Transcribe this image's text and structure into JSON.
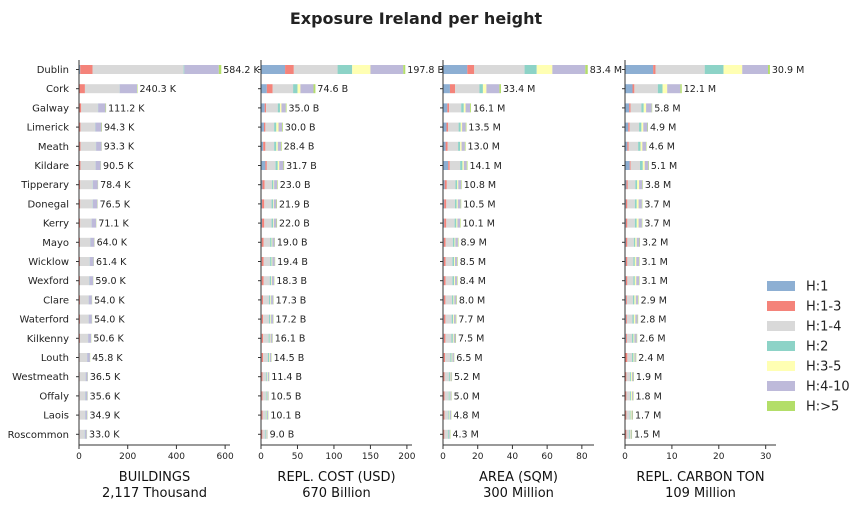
{
  "title": "Exposure Ireland per height",
  "legend_title": "",
  "chart_data": {
    "type": "bar",
    "orientation": "horizontal",
    "stacked": true,
    "title": "Exposure Ireland per height",
    "legend_placement": "right",
    "categories": [
      "Dublin",
      "Cork",
      "Galway",
      "Limerick",
      "Meath",
      "Kildare",
      "Tipperary",
      "Donegal",
      "Kerry",
      "Mayo",
      "Wicklow",
      "Wexford",
      "Clare",
      "Waterford",
      "Kilkenny",
      "Louth",
      "Westmeath",
      "Offaly",
      "Laois",
      "Roscommon"
    ],
    "series_names": [
      "H:1",
      "H:1-3",
      "H:1-4",
      "H:2",
      "H:3-5",
      "H:4-10",
      "H:>5"
    ],
    "series_colors": [
      "#8dafd3",
      "#f4837a",
      "#d9d9d9",
      "#8dd3c7",
      "#ffffb3",
      "#bebada",
      "#b3de69"
    ],
    "panels": [
      {
        "xlabel": "BUILDINGS",
        "total_label": "2,117 Thousand",
        "xlim": [
          0,
          620
        ],
        "xticks": [
          0,
          200,
          400,
          600
        ],
        "xtick_labels": [
          "0",
          "200",
          "400",
          "600"
        ],
        "totals": [
          584.2,
          240.3,
          111.2,
          94.3,
          93.3,
          90.5,
          78.4,
          76.5,
          71.1,
          64.0,
          61.4,
          59.0,
          54.0,
          54.0,
          50.6,
          45.8,
          36.5,
          35.6,
          34.9,
          33.0
        ],
        "total_labels": [
          "584.2 K",
          "240.3 K",
          "111.2 K",
          "94.3 K",
          "93.3 K",
          "90.5 K",
          "78.4 K",
          "76.5 K",
          "71.1 K",
          "64.0 K",
          "61.4 K",
          "59.0 K",
          "54.0 K",
          "54.0 K",
          "50.6 K",
          "45.8 K",
          "36.5 K",
          "35.6 K",
          "34.9 K",
          "33.0 K"
        ],
        "segments": [
          [
            5,
            50,
            370,
            3,
            0,
            140,
            10
          ],
          [
            2,
            22,
            140,
            1,
            0,
            70,
            2
          ],
          [
            1,
            8,
            67,
            1,
            0,
            30,
            2
          ],
          [
            1,
            5,
            61,
            1,
            0,
            25,
            2
          ],
          [
            1,
            5,
            63,
            1,
            0,
            22,
            1
          ],
          [
            1,
            5,
            61,
            1,
            0,
            21,
            1
          ],
          [
            1,
            4,
            51,
            1,
            0,
            20,
            1
          ],
          [
            1,
            4,
            51,
            1,
            0,
            18,
            1
          ],
          [
            1,
            4,
            46,
            1,
            0,
            18,
            1
          ],
          [
            1,
            3,
            42,
            1,
            0,
            16,
            1
          ],
          [
            1,
            3,
            40,
            1,
            0,
            16,
            1
          ],
          [
            1,
            3,
            38,
            1,
            0,
            15,
            1
          ],
          [
            1,
            3,
            35,
            1,
            0,
            13,
            1
          ],
          [
            1,
            3,
            35,
            1,
            0,
            13,
            1
          ],
          [
            1,
            3,
            33,
            1,
            0,
            12,
            1
          ],
          [
            1,
            2,
            30,
            1,
            0,
            11,
            1
          ],
          [
            1,
            2,
            24,
            1,
            0,
            8,
            1
          ],
          [
            1,
            2,
            23,
            1,
            0,
            8,
            1
          ],
          [
            1,
            2,
            23,
            1,
            0,
            8,
            1
          ],
          [
            1,
            2,
            21,
            1,
            0,
            8,
            1
          ]
        ]
      },
      {
        "xlabel": "REPL. COST (USD)",
        "total_label": "670 Billion",
        "xlim": [
          0,
          207
        ],
        "xticks": [
          0,
          50,
          100,
          150,
          200
        ],
        "xtick_labels": [
          "0",
          "50",
          "100",
          "150",
          "200"
        ],
        "totals": [
          197.8,
          74.6,
          35.0,
          30.0,
          28.4,
          31.7,
          23.0,
          21.9,
          22.0,
          19.0,
          19.4,
          18.3,
          17.3,
          17.2,
          16.1,
          14.5,
          11.4,
          10.5,
          10.1,
          9.0
        ],
        "total_labels": [
          "197.8 B",
          "74.6 B",
          "35.0 B",
          "30.0 B",
          "28.4 B",
          "31.7 B",
          "23.0 B",
          "21.9 B",
          "22.0 B",
          "19.0 B",
          "19.4 B",
          "18.3 B",
          "17.3 B",
          "17.2 B",
          "16.1 B",
          "14.5 B",
          "11.4 B",
          "10.5 B",
          "10.1 B",
          "9.0 B"
        ],
        "segments": [
          [
            33,
            12,
            60,
            20,
            25,
            45,
            2.8
          ],
          [
            8,
            8,
            28,
            6,
            4,
            18,
            2.6
          ],
          [
            5,
            2,
            16,
            3,
            2,
            6,
            1
          ],
          [
            4,
            2,
            12,
            3,
            3,
            5,
            1
          ],
          [
            3,
            3,
            12,
            3,
            2,
            4.5,
            0.9
          ],
          [
            6,
            2,
            12,
            3,
            2,
            5.8,
            0.9
          ],
          [
            2,
            3,
            10,
            2,
            1,
            4.3,
            0.7
          ],
          [
            1.5,
            3,
            10,
            2,
            1,
            3.7,
            0.7
          ],
          [
            1.5,
            3,
            10,
            2,
            1,
            3.8,
            0.7
          ],
          [
            1,
            2.5,
            9,
            2,
            1,
            3,
            0.5
          ],
          [
            1,
            2.5,
            9,
            2,
            1,
            3.4,
            0.5
          ],
          [
            1,
            2.5,
            8.5,
            1.8,
            1,
            3,
            0.5
          ],
          [
            1,
            2,
            8,
            1.8,
            1,
            3,
            0.5
          ],
          [
            1,
            2,
            8,
            1.8,
            1,
            2.9,
            0.5
          ],
          [
            1,
            2,
            7.5,
            1.6,
            1,
            2.5,
            0.5
          ],
          [
            1,
            2,
            6.5,
            1.5,
            1,
            2,
            0.5
          ],
          [
            0.8,
            1.5,
            5,
            1.2,
            0.8,
            1.7,
            0.4
          ],
          [
            0.8,
            1.5,
            4.5,
            1.1,
            0.7,
            1.5,
            0.4
          ],
          [
            0.8,
            1.5,
            4.3,
            1.0,
            0.7,
            1.4,
            0.4
          ],
          [
            0.7,
            1.2,
            4,
            0.9,
            0.6,
            1.3,
            0.3
          ]
        ]
      },
      {
        "xlabel": "AREA (SQM)",
        "total_label": "300 Million",
        "xlim": [
          0,
          87
        ],
        "xticks": [
          0,
          20,
          40,
          60,
          80
        ],
        "xtick_labels": [
          "0",
          "20",
          "40",
          "60",
          "80"
        ],
        "totals": [
          83.4,
          33.4,
          16.1,
          13.5,
          13.0,
          14.1,
          10.8,
          10.5,
          10.1,
          8.9,
          8.5,
          8.4,
          8.0,
          7.7,
          7.5,
          6.5,
          5.2,
          5.0,
          4.8,
          4.3
        ],
        "total_labels": [
          "83.4 M",
          "33.4 M",
          "16.1 M",
          "13.5 M",
          "13.0 M",
          "14.1 M",
          "10.8 M",
          "10.5 M",
          "10.1 M",
          "8.9 M",
          "8.5 M",
          "8.4 M",
          "8.0 M",
          "7.7 M",
          "7.5 M",
          "6.5 M",
          "5.2 M",
          "5.0 M",
          "4.8 M",
          "4.3 M"
        ],
        "segments": [
          [
            14,
            4,
            29,
            7,
            9,
            19,
            1.4
          ],
          [
            4,
            3,
            14,
            2,
            2,
            7.5,
            0.9
          ],
          [
            2.5,
            1,
            7,
            1.5,
            1,
            2.6,
            0.5
          ],
          [
            2,
            1,
            6,
            1.2,
            0.8,
            2.1,
            0.4
          ],
          [
            1.5,
            1.2,
            6,
            1.2,
            0.8,
            1.9,
            0.4
          ],
          [
            3,
            0.9,
            6,
            1.3,
            0.8,
            1.7,
            0.4
          ],
          [
            1,
            1.2,
            5,
            1,
            0.6,
            1.7,
            0.3
          ],
          [
            0.7,
            1.2,
            5,
            1,
            0.6,
            1.7,
            0.3
          ],
          [
            0.7,
            1.2,
            4.8,
            1,
            0.6,
            1.5,
            0.3
          ],
          [
            0.5,
            1,
            4.2,
            0.9,
            0.5,
            1.5,
            0.3
          ],
          [
            0.5,
            1,
            4,
            0.9,
            0.5,
            1.3,
            0.3
          ],
          [
            0.5,
            1,
            4,
            0.9,
            0.5,
            1.2,
            0.3
          ],
          [
            0.5,
            0.9,
            3.8,
            0.8,
            0.5,
            1.2,
            0.3
          ],
          [
            0.5,
            0.9,
            3.6,
            0.8,
            0.5,
            1.1,
            0.3
          ],
          [
            0.5,
            0.9,
            3.5,
            0.8,
            0.5,
            1.0,
            0.3
          ],
          [
            0.4,
            0.8,
            3.1,
            0.7,
            0.4,
            0.9,
            0.2
          ],
          [
            0.3,
            0.6,
            2.5,
            0.6,
            0.3,
            0.7,
            0.2
          ],
          [
            0.3,
            0.6,
            2.4,
            0.6,
            0.3,
            0.6,
            0.2
          ],
          [
            0.3,
            0.6,
            2.3,
            0.5,
            0.3,
            0.6,
            0.2
          ],
          [
            0.3,
            0.5,
            2.1,
            0.5,
            0.2,
            0.5,
            0.2
          ]
        ]
      },
      {
        "xlabel": "REPL. CARBON TON",
        "total_label": "109 Million",
        "xlim": [
          0,
          32.2
        ],
        "xticks": [
          0,
          10,
          20,
          30
        ],
        "xtick_labels": [
          "0",
          "10",
          "20",
          "30"
        ],
        "totals": [
          30.9,
          12.1,
          5.8,
          4.9,
          4.6,
          5.1,
          3.8,
          3.7,
          3.7,
          3.2,
          3.1,
          3.1,
          2.9,
          2.8,
          2.6,
          2.4,
          1.9,
          1.8,
          1.7,
          1.5
        ],
        "total_labels": [
          "30.9 M",
          "12.1 M",
          "5.8 M",
          "4.9 M",
          "4.6 M",
          "5.1 M",
          "3.8 M",
          "3.7 M",
          "3.7 M",
          "3.2 M",
          "3.1 M",
          "3.1 M",
          "2.9 M",
          "2.8 M",
          "2.6 M",
          "2.4 M",
          "1.9 M",
          "1.8 M",
          "1.7 M",
          "1.5 M"
        ],
        "segments": [
          [
            6,
            0.5,
            10.5,
            4,
            4,
            5.5,
            0.4
          ],
          [
            1.6,
            0.4,
            5.0,
            1.0,
            1.0,
            2.8,
            0.3
          ],
          [
            0.9,
            0.3,
            2.3,
            0.5,
            0.5,
            1.2,
            0.1
          ],
          [
            0.7,
            0.3,
            2.0,
            0.5,
            0.4,
            0.9,
            0.1
          ],
          [
            0.5,
            0.3,
            2.0,
            0.5,
            0.4,
            0.8,
            0.1
          ],
          [
            1.0,
            0.2,
            2.0,
            0.6,
            0.4,
            0.8,
            0.1
          ],
          [
            0.3,
            0.3,
            1.6,
            0.4,
            0.4,
            0.7,
            0.1
          ],
          [
            0.2,
            0.3,
            1.6,
            0.4,
            0.4,
            0.7,
            0.1
          ],
          [
            0.2,
            0.3,
            1.6,
            0.4,
            0.4,
            0.7,
            0.1
          ],
          [
            0.2,
            0.3,
            1.4,
            0.3,
            0.3,
            0.6,
            0.1
          ],
          [
            0.2,
            0.3,
            1.3,
            0.3,
            0.3,
            0.6,
            0.1
          ],
          [
            0.2,
            0.3,
            1.3,
            0.3,
            0.3,
            0.6,
            0.1
          ],
          [
            0.2,
            0.2,
            1.3,
            0.3,
            0.3,
            0.5,
            0.1
          ],
          [
            0.2,
            0.2,
            1.2,
            0.3,
            0.3,
            0.5,
            0.1
          ],
          [
            0.2,
            0.2,
            1.1,
            0.3,
            0.2,
            0.5,
            0.1
          ],
          [
            0.1,
            0.4,
            1.0,
            0.3,
            0.2,
            0.3,
            0.1
          ],
          [
            0.1,
            0.2,
            0.8,
            0.2,
            0.2,
            0.3,
            0.1
          ],
          [
            0.1,
            0.2,
            0.8,
            0.2,
            0.2,
            0.2,
            0.1
          ],
          [
            0.1,
            0.2,
            0.7,
            0.2,
            0.2,
            0.2,
            0.1
          ],
          [
            0.1,
            0.2,
            0.6,
            0.2,
            0.1,
            0.2,
            0.1
          ]
        ]
      }
    ]
  }
}
